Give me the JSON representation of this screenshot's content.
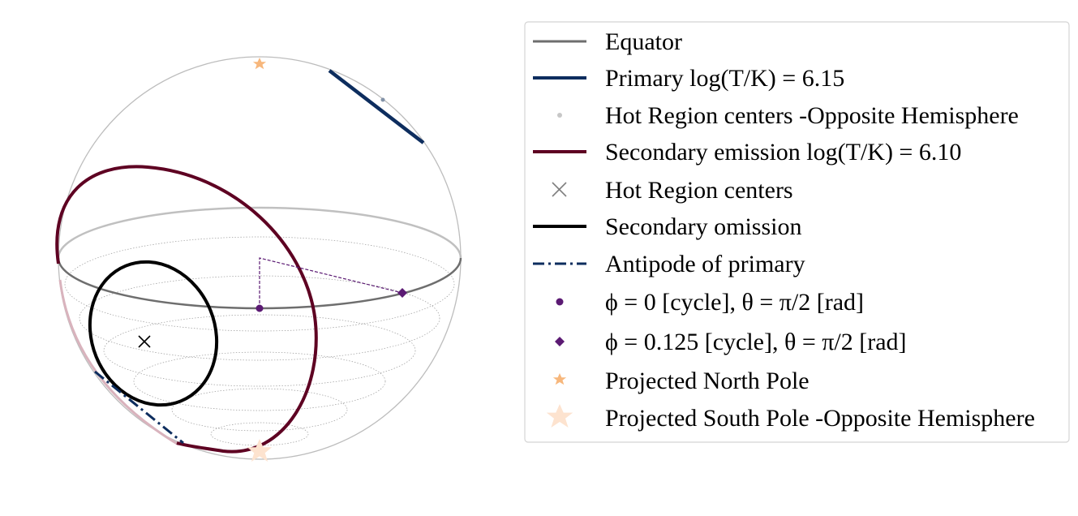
{
  "legend": {
    "entries": [
      {
        "label": "Equator",
        "marker": "line-solid",
        "color": "#6e6e6e"
      },
      {
        "label": "Primary log(T/K) = 6.15",
        "marker": "line-solid",
        "color": "#0d2d5e"
      },
      {
        "label": "Hot Region centers -Opposite Hemisphere",
        "marker": "dot-small",
        "color": "#c7c7c7"
      },
      {
        "label": "Secondary emission log(T/K) = 6.10",
        "marker": "line-solid",
        "color": "#5e0022"
      },
      {
        "label": "Hot Region centers",
        "marker": "x-marker",
        "color": "#7f7f7f"
      },
      {
        "label": "Secondary omission",
        "marker": "line-solid",
        "color": "#000000"
      },
      {
        "label": "Antipode of primary",
        "marker": "line-dashdot",
        "color": "#0d2d5e"
      },
      {
        "label": "ϕ = 0 [cycle], θ = π/2 [rad]",
        "marker": "dot",
        "color": "#5b1a73"
      },
      {
        "label": "ϕ = 0.125 [cycle], θ = π/2 [rad]",
        "marker": "diamond",
        "color": "#5b1a73"
      },
      {
        "label": "Projected North Pole",
        "marker": "star-small",
        "color": "#f7b77c"
      },
      {
        "label": "Projected South Pole  -Opposite Hemisphere",
        "marker": "star-large",
        "color": "#fde3cf"
      }
    ]
  },
  "colors": {
    "sphere_outline": "#bdbdbd",
    "equator_back": "#c0c0c0",
    "equator_front": "#6e6e6e",
    "primary": "#0d2d5e",
    "secondary_emission": "#5e0022",
    "secondary_omission": "#000000",
    "phase_marker": "#5b1a73",
    "north_pole": "#f7b77c",
    "south_pole": "#fde3cf"
  }
}
